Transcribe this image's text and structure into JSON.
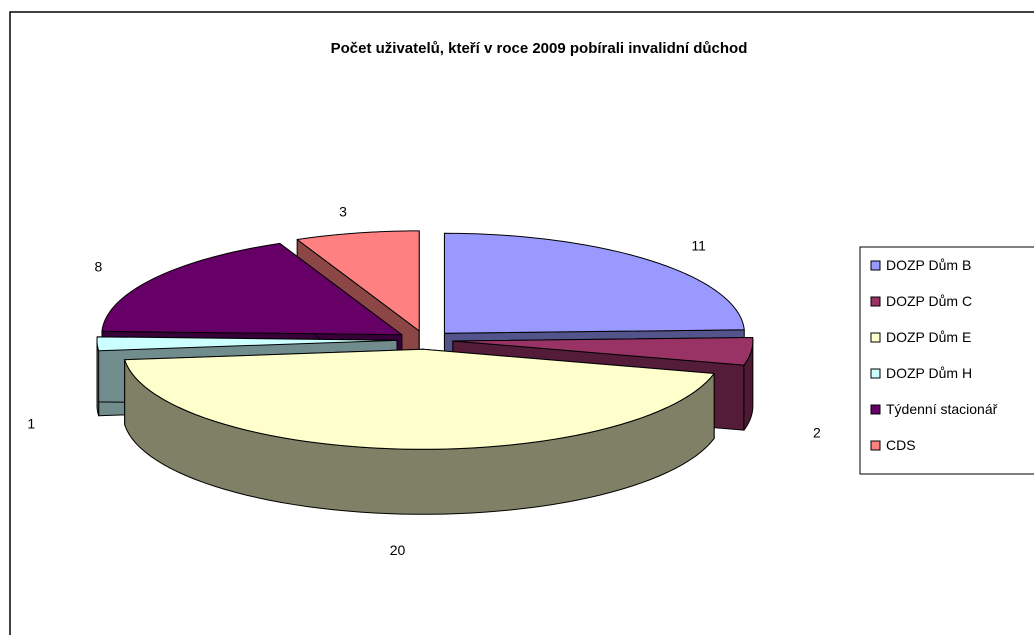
{
  "chart_data": {
    "type": "pie",
    "style": "3d-exploded",
    "title": "Počet uživatelů, kteří v roce 2009 pobírali invalidní důchod",
    "categories": [
      "DOZP Dům B",
      "DOZP  Dům C",
      "DOZP  Dům E",
      "DOZP  Dům H",
      "Týdenní stacionář",
      "CDS"
    ],
    "values": [
      11,
      2,
      20,
      1,
      8,
      3
    ],
    "data_labels": [
      "11",
      "2",
      "20",
      "1",
      "8",
      "3"
    ],
    "colors": [
      "#9999ff",
      "#993366",
      "#ffffcc",
      "#ccffff",
      "#660066",
      "#ff8080"
    ],
    "legend_position": "right",
    "grid": false
  }
}
